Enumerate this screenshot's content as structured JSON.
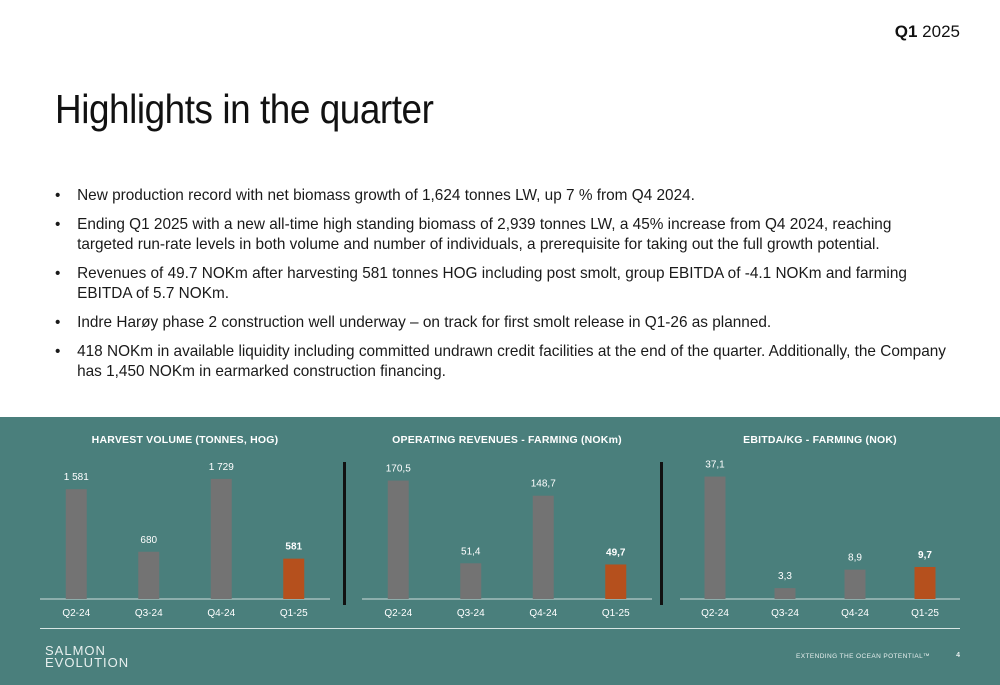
{
  "header": {
    "quarter": "Q1",
    "year": "2025"
  },
  "title": "Highlights in the quarter",
  "bullets": [
    "New production record with net biomass growth of 1,624 tonnes LW, up 7 % from Q4 2024.",
    "Ending Q1 2025 with a new all-time high standing biomass of 2,939 tonnes LW, a 45% increase from Q4 2024, reaching targeted run-rate levels in both volume and number of individuals, a prerequisite for taking out the full growth potential.",
    "Revenues of 49.7 NOKm after harvesting 581 tonnes HOG including post smolt, group EBITDA of -4.1 NOKm and farming EBITDA of 5.7 NOKm.",
    "Indre Harøy phase 2 construction well underway – on track for first smolt release in Q1-26 as planned.",
    "418 NOKm in available liquidity including committed undrawn credit facilities at the end of the quarter. Additionally, the Company has 1,450 NOKm in earmarked construction financing."
  ],
  "colors": {
    "panel": "#4a7f7c",
    "bar": "#737373",
    "highlight": "#b5501d"
  },
  "chart_data": [
    {
      "type": "bar",
      "title": "HARVEST VOLUME (TONNES, HOG)",
      "categories": [
        "Q2-24",
        "Q3-24",
        "Q4-24",
        "Q1-25"
      ],
      "values": [
        1581,
        680,
        1729,
        581
      ],
      "labels": [
        "1 581",
        "680",
        "1 729",
        "581"
      ],
      "ylim": [
        0,
        1900
      ]
    },
    {
      "type": "bar",
      "title": "OPERATING REVENUES - FARMING (NOKm)",
      "categories": [
        "Q2-24",
        "Q3-24",
        "Q4-24",
        "Q1-25"
      ],
      "values": [
        170.5,
        51.4,
        148.7,
        49.7
      ],
      "labels": [
        "170,5",
        "51,4",
        "148,7",
        "49,7"
      ],
      "ylim": [
        0,
        190
      ]
    },
    {
      "type": "bar",
      "title": "EBITDA/KG - FARMING (NOK)",
      "categories": [
        "Q2-24",
        "Q3-24",
        "Q4-24",
        "Q1-25"
      ],
      "values": [
        37.1,
        3.3,
        8.9,
        9.7
      ],
      "labels": [
        "37,1",
        "3,3",
        "8,9",
        "9,7"
      ],
      "ylim": [
        0,
        40
      ]
    }
  ],
  "footer": {
    "logo_line1": "SALMON",
    "logo_line2": "EVOLUTION",
    "tagline": "EXTENDING THE OCEAN POTENTIAL™",
    "page": "4"
  }
}
